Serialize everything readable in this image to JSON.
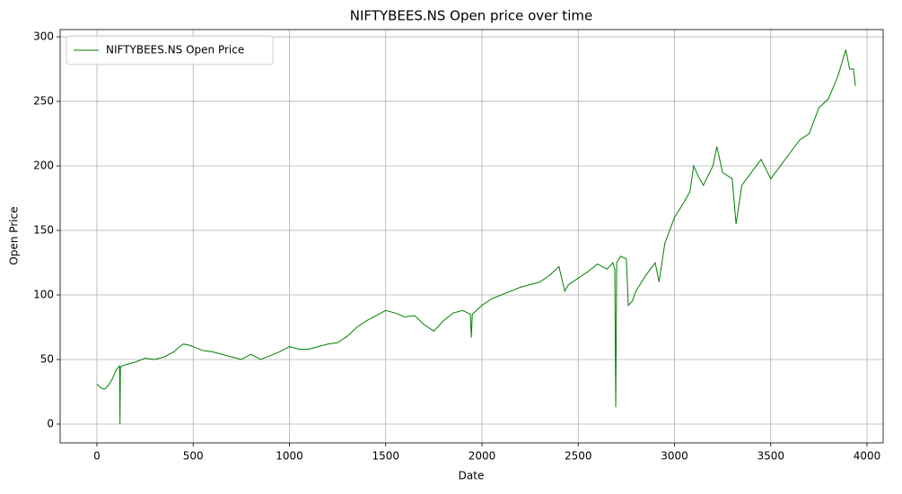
{
  "chart_data": {
    "type": "line",
    "title": "NIFTYBEES.NS Open price over time",
    "x_label": "Date",
    "y_label": "Open Price",
    "x": [
      0,
      20,
      40,
      60,
      80,
      100,
      118,
      120,
      122,
      130,
      150,
      200,
      250,
      300,
      350,
      400,
      430,
      450,
      480,
      500,
      550,
      600,
      650,
      700,
      750,
      800,
      850,
      900,
      950,
      1000,
      1050,
      1100,
      1150,
      1200,
      1250,
      1300,
      1350,
      1400,
      1450,
      1500,
      1550,
      1600,
      1650,
      1700,
      1750,
      1800,
      1850,
      1900,
      1940,
      1945,
      1950,
      2000,
      2050,
      2100,
      2150,
      2200,
      2250,
      2300,
      2350,
      2400,
      2430,
      2450,
      2500,
      2550,
      2600,
      2650,
      2680,
      2690,
      2695,
      2700,
      2720,
      2750,
      2760,
      2780,
      2800,
      2850,
      2900,
      2920,
      2950,
      3000,
      3050,
      3080,
      3100,
      3130,
      3150,
      3200,
      3220,
      3250,
      3300,
      3320,
      3350,
      3400,
      3450,
      3500,
      3550,
      3600,
      3650,
      3700,
      3750,
      3800,
      3850,
      3880,
      3890,
      3910,
      3930,
      3940
    ],
    "series": [
      {
        "name": "NIFTYBEES.NS Open Price",
        "color": "#008000",
        "values": [
          31,
          28,
          27,
          30,
          35,
          42,
          45,
          0,
          44,
          45,
          46,
          48,
          51,
          50,
          52,
          56,
          60,
          62,
          61,
          60,
          57,
          56,
          54,
          52,
          50,
          54,
          50,
          53,
          56,
          60,
          58,
          58,
          60,
          62,
          63,
          68,
          75,
          80,
          84,
          88,
          86,
          83,
          84,
          77,
          72,
          80,
          86,
          88,
          85,
          67,
          85,
          92,
          97,
          100,
          103,
          106,
          108,
          110,
          115,
          122,
          103,
          108,
          113,
          118,
          124,
          120,
          125,
          120,
          13,
          125,
          130,
          128,
          92,
          95,
          103,
          115,
          125,
          110,
          140,
          160,
          172,
          180,
          200,
          190,
          185,
          200,
          215,
          195,
          190,
          155,
          185,
          195,
          205,
          190,
          200,
          210,
          220,
          225,
          245,
          252,
          270,
          285,
          290,
          275,
          275,
          262
        ]
      }
    ],
    "xlim": [
      -191,
      4084
    ],
    "ylim": [
      -14.6,
      305.6
    ],
    "xticks": [
      0,
      500,
      1000,
      1500,
      2000,
      2500,
      3000,
      3500,
      4000
    ],
    "yticks": [
      0,
      50,
      100,
      150,
      200,
      250,
      300
    ],
    "grid": true,
    "legend": "upper left"
  }
}
